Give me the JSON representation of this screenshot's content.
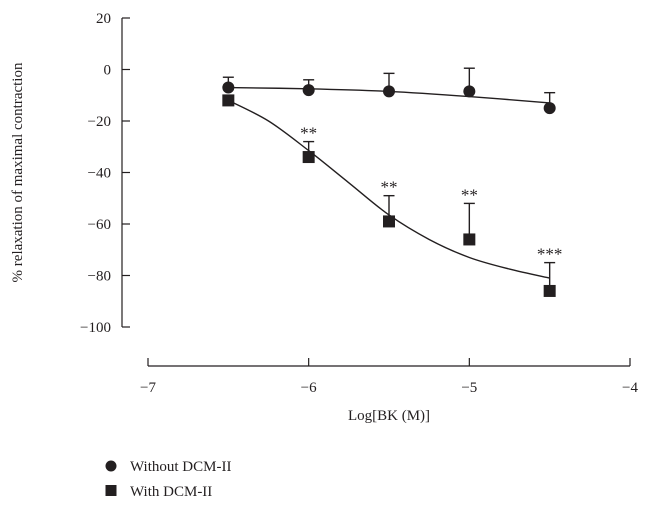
{
  "chart_data": {
    "type": "scatter",
    "xlabel": "Log[BK (M)]",
    "ylabel": "% relaxation of maximal contraction",
    "xlim": [
      -7,
      -4
    ],
    "ylim": [
      -100,
      20
    ],
    "x_ticks": [
      -7,
      -6,
      -5,
      -4
    ],
    "x_tick_labels": [
      "−7",
      "−6",
      "−5",
      "−4"
    ],
    "y_ticks": [
      20,
      0,
      -20,
      -40,
      -60,
      -80,
      -100
    ],
    "y_tick_labels": [
      "20",
      "0",
      "−20",
      "−40",
      "−60",
      "−80",
      "−100"
    ],
    "grid": false,
    "legend_position": "bottom-left",
    "series": [
      {
        "name": "Without DCM-II",
        "marker": "circle",
        "color": "#231f20",
        "x": [
          -6.5,
          -6,
          -5.5,
          -5,
          -4.5
        ],
        "values": [
          -7,
          -8,
          -8.5,
          -8.5,
          -15
        ],
        "error_upper": [
          4,
          4,
          7,
          9,
          6
        ],
        "fit_curve": [
          [
            -6.5,
            -7
          ],
          [
            -6,
            -7.5
          ],
          [
            -5.5,
            -8.5
          ],
          [
            -5,
            -10.5
          ],
          [
            -4.5,
            -13
          ]
        ]
      },
      {
        "name": "With DCM-II",
        "marker": "square",
        "color": "#231f20",
        "x": [
          -6.5,
          -6,
          -5.5,
          -5,
          -4.5
        ],
        "values": [
          -12,
          -34,
          -59,
          -66,
          -86
        ],
        "error_upper": [
          1,
          6,
          10,
          14,
          11
        ],
        "significance": [
          "",
          "**",
          "**",
          "**",
          "***"
        ],
        "fit_curve": [
          [
            -6.5,
            -12
          ],
          [
            -6.25,
            -20
          ],
          [
            -6,
            -31.5
          ],
          [
            -5.75,
            -44
          ],
          [
            -5.5,
            -56.5
          ],
          [
            -5.25,
            -66
          ],
          [
            -5,
            -73
          ],
          [
            -4.75,
            -77.5
          ],
          [
            -4.5,
            -81
          ]
        ]
      }
    ]
  }
}
